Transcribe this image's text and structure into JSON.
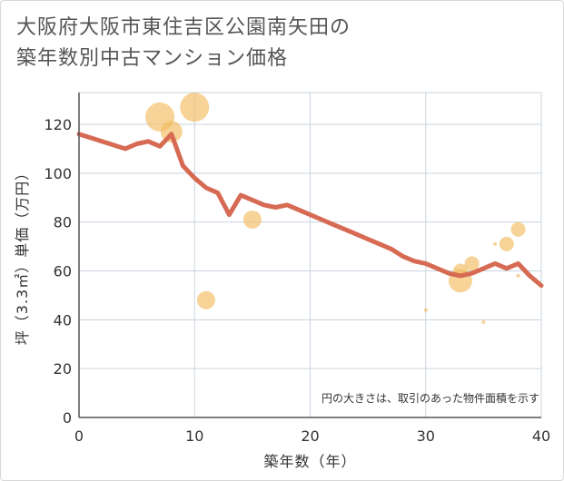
{
  "title_lines": [
    "大阪府大阪市東住吉区公園南矢田の",
    "築年数別中古マンション価格"
  ],
  "chart_data": {
    "type": "scatter",
    "xlabel": "築年数（年）",
    "ylabel": "坪（3.3㎡）単価（万円）",
    "xlim": [
      0,
      40
    ],
    "ylim": [
      0,
      133
    ],
    "x_ticks": [
      0,
      10,
      20,
      30,
      40
    ],
    "y_ticks": [
      0,
      20,
      40,
      60,
      80,
      100,
      120
    ],
    "grid": true,
    "note": "円の大きさは、取引のあった物件面積を示す",
    "colors": {
      "bubble": "#f2bc61",
      "line": "#d66a52",
      "grid": "#c9d3de",
      "axis": "#555555"
    },
    "bubbles": [
      {
        "x": 7,
        "y": 123,
        "size": 16
      },
      {
        "x": 8,
        "y": 117,
        "size": 12
      },
      {
        "x": 10,
        "y": 127,
        "size": 16
      },
      {
        "x": 11,
        "y": 48,
        "size": 10
      },
      {
        "x": 15,
        "y": 81,
        "size": 10
      },
      {
        "x": 30,
        "y": 44,
        "size": 2
      },
      {
        "x": 33,
        "y": 60,
        "size": 8
      },
      {
        "x": 33,
        "y": 56,
        "size": 13
      },
      {
        "x": 34,
        "y": 63,
        "size": 8
      },
      {
        "x": 35,
        "y": 39,
        "size": 2
      },
      {
        "x": 36,
        "y": 71,
        "size": 2
      },
      {
        "x": 37,
        "y": 71,
        "size": 8
      },
      {
        "x": 38,
        "y": 77,
        "size": 8
      },
      {
        "x": 38,
        "y": 58,
        "size": 2
      }
    ],
    "trend_line": {
      "x": [
        0,
        4,
        5,
        6,
        7,
        8,
        9,
        10,
        11,
        12,
        13,
        14,
        15,
        16,
        17,
        18,
        19,
        20,
        21,
        22,
        23,
        24,
        25,
        26,
        27,
        28,
        29,
        30,
        31,
        32,
        33,
        34,
        35,
        36,
        37,
        38,
        39,
        40
      ],
      "y": [
        116,
        110,
        112,
        113,
        111,
        116,
        103,
        98,
        94,
        92,
        83,
        91,
        89,
        87,
        86,
        87,
        85,
        83,
        81,
        79,
        77,
        75,
        73,
        71,
        69,
        66,
        64,
        63,
        61,
        59,
        58,
        59,
        61,
        63,
        61,
        63,
        58,
        54
      ]
    }
  }
}
